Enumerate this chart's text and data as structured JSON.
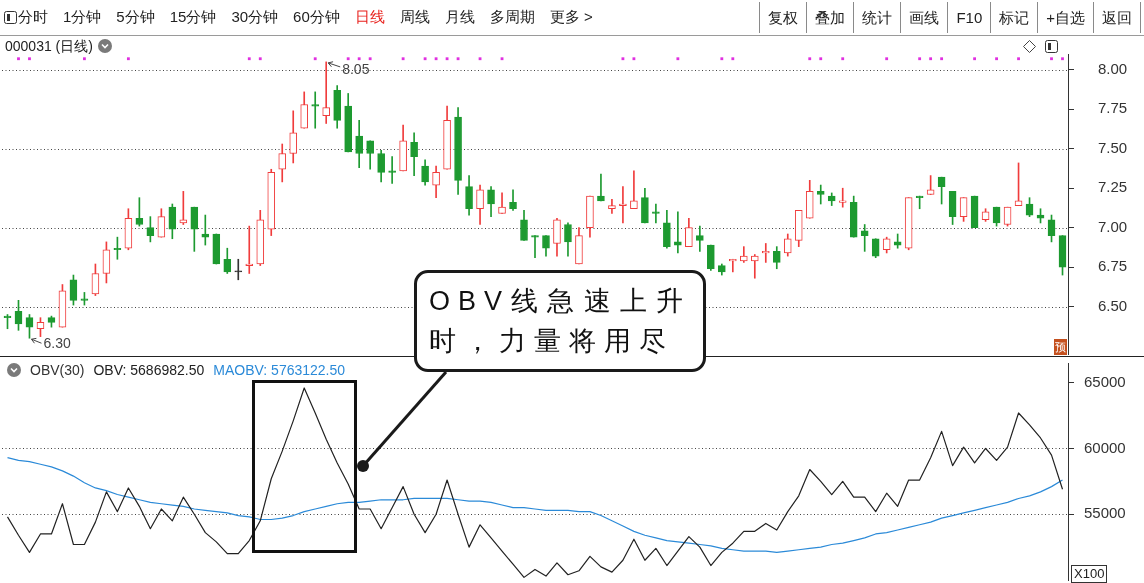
{
  "chart_data": [
    {
      "type": "other",
      "annotations": [
        "分时",
        "1分钟",
        "5分钟",
        "15分钟",
        "30分钟",
        "60分钟",
        "日线",
        "周线",
        "月线",
        "多周期",
        "更多 >",
        "复权",
        "叠加",
        "统计",
        "画线",
        "F10",
        "标记",
        "+自选",
        "返回"
      ]
    },
    {
      "type": "candlestick",
      "title": "000031 (日线)",
      "categories": [
        null,
        null,
        null,
        null,
        null,
        null,
        null,
        null,
        null,
        null,
        null,
        null,
        null,
        null,
        null,
        null,
        null,
        null,
        null,
        null,
        null,
        null,
        null,
        null,
        null,
        null,
        null,
        null,
        null,
        null,
        null,
        null,
        null,
        null,
        null,
        null,
        null,
        null,
        null,
        null,
        null,
        null,
        null,
        null,
        null,
        null,
        null,
        null,
        null,
        null,
        null,
        null,
        null,
        null,
        null,
        null,
        null,
        null,
        null,
        null,
        null,
        null,
        null,
        null,
        null,
        null,
        null,
        null,
        null,
        null,
        null,
        null,
        null,
        null,
        null,
        null,
        null,
        null,
        null,
        null,
        null,
        null,
        null,
        null,
        null,
        null,
        null,
        null,
        null,
        null,
        null,
        null,
        null,
        null,
        null,
        null,
        null
      ],
      "ohlc": [
        [
          6.44,
          6.45,
          6.36,
          6.43
        ],
        [
          6.47,
          6.54,
          6.35,
          6.39
        ],
        [
          6.43,
          6.45,
          6.3,
          6.37
        ],
        [
          6.36,
          6.43,
          6.31,
          6.4
        ],
        [
          6.43,
          6.44,
          6.37,
          6.4
        ],
        [
          6.37,
          6.64,
          6.37,
          6.6
        ],
        [
          6.67,
          6.7,
          6.51,
          6.54
        ],
        [
          6.55,
          6.59,
          6.51,
          6.54
        ],
        [
          6.58,
          6.77,
          6.57,
          6.71
        ],
        [
          6.71,
          6.91,
          6.65,
          6.86
        ],
        [
          6.87,
          6.94,
          6.8,
          6.86
        ],
        [
          6.87,
          7.12,
          6.86,
          7.06
        ],
        [
          7.06,
          7.19,
          7.01,
          7.02
        ],
        [
          7.0,
          7.07,
          6.91,
          6.95
        ],
        [
          6.94,
          7.12,
          6.94,
          7.07
        ],
        [
          7.13,
          7.15,
          6.93,
          6.99
        ],
        [
          7.03,
          7.23,
          7.02,
          7.05
        ],
        [
          7.13,
          7.13,
          6.85,
          6.99
        ],
        [
          6.96,
          7.08,
          6.89,
          6.94
        ],
        [
          6.96,
          6.96,
          6.77,
          6.77
        ],
        [
          6.8,
          6.87,
          6.71,
          6.72
        ],
        [
          6.72,
          6.8,
          6.67,
          6.72
        ],
        [
          6.76,
          7.01,
          6.71,
          6.77
        ],
        [
          6.77,
          7.11,
          6.76,
          7.05
        ],
        [
          6.99,
          7.37,
          6.95,
          7.35
        ],
        [
          7.37,
          7.53,
          7.29,
          7.47
        ],
        [
          7.47,
          7.74,
          7.41,
          7.6
        ],
        [
          7.63,
          7.86,
          7.63,
          7.78
        ],
        [
          7.78,
          7.86,
          7.63,
          7.77
        ],
        [
          7.71,
          8.05,
          7.66,
          7.76
        ],
        [
          7.87,
          7.9,
          7.63,
          7.68
        ],
        [
          7.77,
          7.85,
          7.48,
          7.48
        ],
        [
          7.58,
          7.68,
          7.38,
          7.47
        ],
        [
          7.55,
          7.55,
          7.37,
          7.47
        ],
        [
          7.47,
          7.49,
          7.29,
          7.35
        ],
        [
          7.36,
          7.45,
          7.28,
          7.35
        ],
        [
          7.36,
          7.65,
          7.36,
          7.55
        ],
        [
          7.54,
          7.6,
          7.33,
          7.45
        ],
        [
          7.39,
          7.43,
          7.27,
          7.29
        ],
        [
          7.27,
          7.39,
          7.19,
          7.35
        ],
        [
          7.37,
          7.77,
          7.37,
          7.68
        ],
        [
          7.7,
          7.76,
          7.21,
          7.3
        ],
        [
          7.26,
          7.33,
          7.08,
          7.12
        ],
        [
          7.12,
          7.27,
          7.02,
          7.24
        ],
        [
          7.24,
          7.26,
          7.07,
          7.15
        ],
        [
          7.09,
          7.22,
          7.09,
          7.13
        ],
        [
          7.16,
          7.24,
          7.11,
          7.12
        ],
        [
          7.05,
          7.11,
          6.92,
          6.92
        ],
        [
          6.95,
          6.95,
          6.81,
          6.94
        ],
        [
          6.95,
          6.95,
          6.82,
          6.87
        ],
        [
          6.9,
          7.06,
          6.82,
          7.05
        ],
        [
          7.02,
          7.03,
          6.82,
          6.91
        ],
        [
          6.77,
          7.0,
          6.77,
          6.95
        ],
        [
          7.0,
          7.2,
          6.94,
          7.2
        ],
        [
          7.2,
          7.34,
          7.17,
          7.17
        ],
        [
          7.12,
          7.18,
          7.09,
          7.14
        ],
        [
          7.14,
          7.26,
          7.03,
          7.15
        ],
        [
          7.12,
          7.36,
          7.12,
          7.17
        ],
        [
          7.19,
          7.25,
          7.03,
          7.03
        ],
        [
          7.1,
          7.15,
          7.03,
          7.09
        ],
        [
          7.03,
          7.11,
          6.87,
          6.88
        ],
        [
          6.91,
          7.1,
          6.84,
          6.89
        ],
        [
          6.88,
          7.06,
          6.88,
          7.0
        ],
        [
          6.95,
          7.01,
          6.85,
          6.92
        ],
        [
          6.89,
          6.89,
          6.73,
          6.74
        ],
        [
          6.76,
          6.77,
          6.7,
          6.72
        ],
        [
          6.79,
          6.8,
          6.72,
          6.8
        ],
        [
          6.79,
          6.88,
          6.78,
          6.82
        ],
        [
          6.79,
          6.83,
          6.68,
          6.82
        ],
        [
          6.84,
          6.9,
          6.78,
          6.85
        ],
        [
          6.85,
          6.88,
          6.74,
          6.78
        ],
        [
          6.84,
          6.96,
          6.82,
          6.93
        ],
        [
          6.92,
          7.11,
          6.88,
          7.11
        ],
        [
          7.06,
          7.3,
          7.06,
          7.23
        ],
        [
          7.23,
          7.27,
          7.15,
          7.21
        ],
        [
          7.2,
          7.22,
          7.14,
          7.17
        ],
        [
          7.16,
          7.25,
          7.13,
          7.17
        ],
        [
          7.16,
          7.2,
          6.94,
          6.94
        ],
        [
          6.98,
          7.02,
          6.85,
          6.95
        ],
        [
          6.93,
          6.93,
          6.81,
          6.82
        ],
        [
          6.86,
          6.94,
          6.84,
          6.93
        ],
        [
          6.91,
          6.96,
          6.87,
          6.89
        ],
        [
          6.87,
          7.19,
          6.86,
          7.19
        ],
        [
          7.2,
          7.2,
          7.12,
          7.19
        ],
        [
          7.21,
          7.33,
          7.21,
          7.24
        ],
        [
          7.32,
          7.32,
          7.15,
          7.26
        ],
        [
          7.23,
          7.23,
          7.02,
          7.07
        ],
        [
          7.07,
          7.19,
          7.04,
          7.19
        ],
        [
          7.2,
          7.2,
          7.0,
          7.0
        ],
        [
          7.05,
          7.12,
          7.04,
          7.1
        ],
        [
          7.13,
          7.13,
          7.01,
          7.03
        ],
        [
          7.02,
          7.13,
          7.01,
          7.13
        ],
        [
          7.14,
          7.41,
          7.14,
          7.17
        ],
        [
          7.15,
          7.19,
          7.07,
          7.08
        ],
        [
          7.08,
          7.12,
          7.03,
          7.06
        ],
        [
          7.05,
          7.08,
          6.91,
          6.95
        ],
        [
          6.95,
          6.95,
          6.7,
          6.75
        ]
      ],
      "colors": [
        "#1d9a30",
        "#1d9a30",
        "#1d9a30",
        "#f03c3c",
        "#1d9a30",
        "#f03c3c",
        "#1d9a30",
        "#1d9a30",
        "#f03c3c",
        "#f03c3c",
        "#1d9a30",
        "#f03c3c",
        "#1d9a30",
        "#1d9a30",
        "#f03c3c",
        "#1d9a30",
        "#f03c3c",
        "#1d9a30",
        "#1d9a30",
        "#1d9a30",
        "#1d9a30",
        "#333333",
        "#f03c3c",
        "#f03c3c",
        "#f03c3c",
        "#f03c3c",
        "#f03c3c",
        "#f03c3c",
        "#1d9a30",
        "#f03c3c",
        "#1d9a30",
        "#1d9a30",
        "#1d9a30",
        "#1d9a30",
        "#1d9a30",
        "#1d9a30",
        "#f03c3c",
        "#1d9a30",
        "#1d9a30",
        "#f03c3c",
        "#f03c3c",
        "#1d9a30",
        "#1d9a30",
        "#f03c3c",
        "#1d9a30",
        "#f03c3c",
        "#1d9a30",
        "#1d9a30",
        "#1d9a30",
        "#1d9a30",
        "#f03c3c",
        "#1d9a30",
        "#f03c3c",
        "#f03c3c",
        "#1d9a30",
        "#f03c3c",
        "#f03c3c",
        "#f03c3c",
        "#1d9a30",
        "#1d9a30",
        "#1d9a30",
        "#1d9a30",
        "#f03c3c",
        "#1d9a30",
        "#1d9a30",
        "#1d9a30",
        "#f03c3c",
        "#f03c3c",
        "#f03c3c",
        "#f03c3c",
        "#1d9a30",
        "#f03c3c",
        "#f03c3c",
        "#f03c3c",
        "#1d9a30",
        "#1d9a30",
        "#f03c3c",
        "#1d9a30",
        "#1d9a30",
        "#1d9a30",
        "#f03c3c",
        "#1d9a30",
        "#f03c3c",
        "#1d9a30",
        "#f03c3c",
        "#1d9a30",
        "#1d9a30",
        "#f03c3c",
        "#1d9a30",
        "#f03c3c",
        "#1d9a30",
        "#f03c3c",
        "#f03c3c",
        "#1d9a30",
        "#1d9a30",
        "#1d9a30",
        "#1d9a30"
      ],
      "series": [
        {
          "type": "scatter",
          "color": "#e030e0",
          "marker": "square",
          "values": [
            null,
            8.07,
            8.07,
            null,
            null,
            null,
            null,
            8.07,
            null,
            null,
            null,
            8.07,
            null,
            null,
            null,
            null,
            null,
            null,
            null,
            null,
            null,
            null,
            8.07,
            8.07,
            null,
            null,
            null,
            null,
            8.07,
            null,
            null,
            8.07,
            8.07,
            8.07,
            null,
            null,
            8.07,
            null,
            8.07,
            8.07,
            8.07,
            8.07,
            null,
            8.07,
            null,
            8.07,
            null,
            null,
            null,
            null,
            null,
            null,
            null,
            null,
            null,
            null,
            8.07,
            8.07,
            null,
            null,
            null,
            8.07,
            null,
            null,
            null,
            8.07,
            8.07,
            null,
            null,
            null,
            null,
            null,
            null,
            8.07,
            8.07,
            null,
            8.07,
            null,
            null,
            null,
            8.07,
            null,
            null,
            8.07,
            8.07,
            8.07,
            null,
            null,
            8.07,
            null,
            8.07,
            null,
            8.07,
            null,
            null,
            8.07,
            8.07
          ]
        }
      ],
      "ylim": [
        6.2,
        8.1
      ],
      "yticks": [
        {
          "value": 6.5,
          "label": "6.50"
        },
        {
          "value": 6.75,
          "label": "6.75"
        },
        {
          "value": 7,
          "label": "7.00"
        },
        {
          "value": 7.25,
          "label": "7.25"
        },
        {
          "value": 7.5,
          "label": "7.50"
        },
        {
          "value": 7.75,
          "label": "7.75"
        },
        {
          "value": 8,
          "label": "8.00"
        }
      ],
      "ref_lines": [
        {
          "axis": "y",
          "value": 6.5,
          "color": "#444444",
          "line_style": "dotted"
        },
        {
          "axis": "y",
          "value": 7,
          "color": "#444444",
          "line_style": "dotted"
        },
        {
          "axis": "y",
          "value": 7.5,
          "color": "#444444",
          "line_style": "dotted"
        },
        {
          "axis": "y",
          "value": 8,
          "color": "#444444",
          "line_style": "dotted"
        }
      ],
      "tick_labels": "y",
      "annotations": [
        {
          "text": "8.05",
          "y": 8.05
        },
        "6.30",
        "预"
      ]
    },
    {
      "type": "line",
      "title": "OBV(30)",
      "categories": [
        null,
        null,
        null,
        null,
        null,
        null,
        null,
        null,
        null,
        null,
        null,
        null,
        null,
        null,
        null,
        null,
        null,
        null,
        null,
        null,
        null,
        null,
        null,
        null,
        null,
        null,
        null,
        null,
        null,
        null,
        null,
        null,
        null,
        null,
        null,
        null,
        null,
        null,
        null,
        null,
        null,
        null,
        null,
        null,
        null,
        null,
        null,
        null,
        null,
        null,
        null,
        null,
        null,
        null,
        null,
        null,
        null,
        null,
        null,
        null,
        null,
        null,
        null,
        null,
        null,
        null,
        null,
        null,
        null,
        null,
        null,
        null,
        null,
        null,
        null,
        null,
        null,
        null,
        null,
        null,
        null,
        null,
        null,
        null,
        null,
        null,
        null,
        null,
        null,
        null,
        null,
        null,
        null,
        null,
        null,
        null,
        null
      ],
      "series": [
        {
          "name": "OBV: 5686982.50",
          "color": "#222222",
          "values": [
            54800,
            53400,
            52100,
            53500,
            53500,
            55800,
            52700,
            52700,
            54400,
            56700,
            55200,
            57000,
            55600,
            53900,
            55400,
            54500,
            56300,
            55000,
            53600,
            52900,
            52000,
            52000,
            53000,
            54500,
            57700,
            59800,
            62100,
            64600,
            62700,
            60700,
            58900,
            57300,
            55400,
            55400,
            53900,
            55500,
            57100,
            55000,
            53600,
            55000,
            57600,
            55000,
            52500,
            54200,
            53200,
            52200,
            51200,
            50200,
            50800,
            50300,
            51300,
            50400,
            50700,
            51800,
            51000,
            50600,
            51500,
            53100,
            51500,
            52400,
            51100,
            52200,
            53300,
            52500,
            51100,
            52100,
            52800,
            53700,
            53700,
            54300,
            53800,
            55200,
            56400,
            58400,
            57500,
            56500,
            57500,
            56300,
            56300,
            55200,
            56600,
            55600,
            57600,
            57600,
            59300,
            61300,
            58700,
            60100,
            58900,
            60000,
            59100,
            60100,
            62700,
            61800,
            60800,
            59500,
            56900
          ]
        },
        {
          "name": "MAOBV: 5763122.50",
          "color": "#2b8ad8",
          "values": [
            59300,
            59100,
            59000,
            58800,
            58600,
            58300,
            57900,
            57400,
            57000,
            56800,
            56500,
            56300,
            56100,
            55900,
            55800,
            55700,
            55600,
            55400,
            55300,
            55200,
            55100,
            54900,
            54800,
            54600,
            54600,
            54700,
            54900,
            55200,
            55400,
            55600,
            55800,
            55900,
            55900,
            56000,
            56100,
            56100,
            56100,
            56200,
            56200,
            56200,
            56200,
            56100,
            56000,
            56000,
            55900,
            55700,
            55500,
            55500,
            55400,
            55300,
            55300,
            55300,
            55200,
            55200,
            54900,
            54500,
            54100,
            53700,
            53400,
            53200,
            53000,
            52900,
            52800,
            52700,
            52600,
            52400,
            52300,
            52200,
            52200,
            52200,
            52100,
            52200,
            52300,
            52400,
            52500,
            52700,
            52800,
            53000,
            53200,
            53500,
            53600,
            53800,
            54000,
            54200,
            54400,
            54700,
            54900,
            55100,
            55300,
            55500,
            55700,
            55900,
            56200,
            56400,
            56700,
            57100,
            57600
          ]
        }
      ],
      "ylim": [
        50000,
        66500
      ],
      "yticks": [
        55000,
        60000,
        65000
      ],
      "ylabel": "X100",
      "ref_lines": [
        {
          "axis": "y",
          "value": 55000,
          "color": "#444444",
          "line_style": "dotted"
        },
        {
          "axis": "y",
          "value": 60000,
          "color": "#444444",
          "line_style": "dotted"
        }
      ],
      "legend": "top left",
      "tick_labels": "y",
      "annotations": [
        "OBV线急速上升时，力量将用尽"
      ]
    }
  ]
}
